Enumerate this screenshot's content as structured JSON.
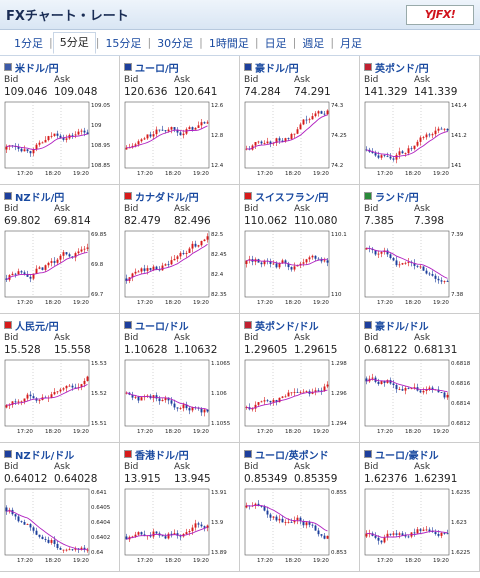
{
  "header": {
    "title": "FXチャート・レート",
    "logo": "YJFX!"
  },
  "tabs": [
    "1分足",
    "5分足",
    "15分足",
    "30分足",
    "1時間足",
    "日足",
    "週足",
    "月足"
  ],
  "active_tab": 1,
  "labels": {
    "bid": "Bid",
    "ask": "Ask"
  },
  "time_ticks": [
    "17:20",
    "18:20",
    "19:20"
  ],
  "colors": {
    "up": "#d61b1b",
    "down": "#1d3f9c",
    "ma": "#b020c0"
  },
  "pairs": [
    {
      "name": "米ドル/円",
      "bid": "109.046",
      "ask": "109.048",
      "yticks": [
        "109.05",
        "109",
        "108.95",
        "108.85"
      ],
      "trend": 1,
      "flag": "#3c5aa8"
    },
    {
      "name": "ユーロ/円",
      "bid": "120.636",
      "ask": "120.641",
      "yticks": [
        "12.6",
        "12.8",
        "12.4"
      ],
      "trend": 1,
      "flag": "#1d3f9c"
    },
    {
      "name": "豪ドル/円",
      "bid": "74.284",
      "ask": "74.291",
      "yticks": [
        "74.3",
        "74.25",
        "74.2"
      ],
      "trend": 1,
      "flag": "#1d3f9c"
    },
    {
      "name": "英ポンド/円",
      "bid": "141.329",
      "ask": "141.339",
      "yticks": [
        "141.4",
        "141.2",
        "141"
      ],
      "trend": 1,
      "flag": "#c02030"
    },
    {
      "name": "NZドル/円",
      "bid": "69.802",
      "ask": "69.814",
      "yticks": [
        "69.85",
        "69.8",
        "69.7"
      ],
      "trend": 1,
      "flag": "#1d3f9c"
    },
    {
      "name": "カナダドル/円",
      "bid": "82.479",
      "ask": "82.496",
      "yticks": [
        "82.5",
        "82.45",
        "82.4",
        "82.35"
      ],
      "trend": 1,
      "flag": "#d61b1b"
    },
    {
      "name": "スイスフラン/円",
      "bid": "110.062",
      "ask": "110.080",
      "yticks": [
        "110.1",
        "110"
      ],
      "trend": 0,
      "flag": "#d61b1b"
    },
    {
      "name": "ランド/円",
      "bid": "7.385",
      "ask": "7.398",
      "yticks": [
        "7.39",
        "7.38"
      ],
      "trend": -1,
      "flag": "#2a8a3a"
    },
    {
      "name": "人民元/円",
      "bid": "15.528",
      "ask": "15.558",
      "yticks": [
        "15.53",
        "15.52",
        "15.51"
      ],
      "trend": 1,
      "flag": "#d61b1b"
    },
    {
      "name": "ユーロ/ドル",
      "bid": "1.10628",
      "ask": "1.10632",
      "yticks": [
        "1.1065",
        "1.106",
        "1.1055"
      ],
      "trend": 0,
      "flag": "#1d3f9c"
    },
    {
      "name": "英ポンド/ドル",
      "bid": "1.29605",
      "ask": "1.29615",
      "yticks": [
        "1.298",
        "1.296",
        "1.294"
      ],
      "trend": 1,
      "flag": "#c02030"
    },
    {
      "name": "豪ドル/ドル",
      "bid": "0.68122",
      "ask": "0.68131",
      "yticks": [
        "0.6818",
        "0.6816",
        "0.6814",
        "0.6812"
      ],
      "trend": -1,
      "flag": "#1d3f9c"
    },
    {
      "name": "NZドル/ドル",
      "bid": "0.64012",
      "ask": "0.64028",
      "yticks": [
        "0.641",
        "0.6405",
        "0.6404",
        "0.6402",
        "0.64"
      ],
      "trend": -1,
      "flag": "#1d3f9c"
    },
    {
      "name": "香港ドル/円",
      "bid": "13.915",
      "ask": "13.945",
      "yticks": [
        "13.91",
        "13.9",
        "13.89"
      ],
      "trend": 1,
      "flag": "#d61b1b"
    },
    {
      "name": "ユーロ/英ポンド",
      "bid": "0.85349",
      "ask": "0.85359",
      "yticks": [
        "0.855",
        "0.853"
      ],
      "trend": -1,
      "flag": "#1d3f9c"
    },
    {
      "name": "ユーロ/豪ドル",
      "bid": "1.62376",
      "ask": "1.62391",
      "yticks": [
        "1.6235",
        "1.623",
        "1.6225"
      ],
      "trend": 1,
      "flag": "#1d3f9c"
    }
  ]
}
